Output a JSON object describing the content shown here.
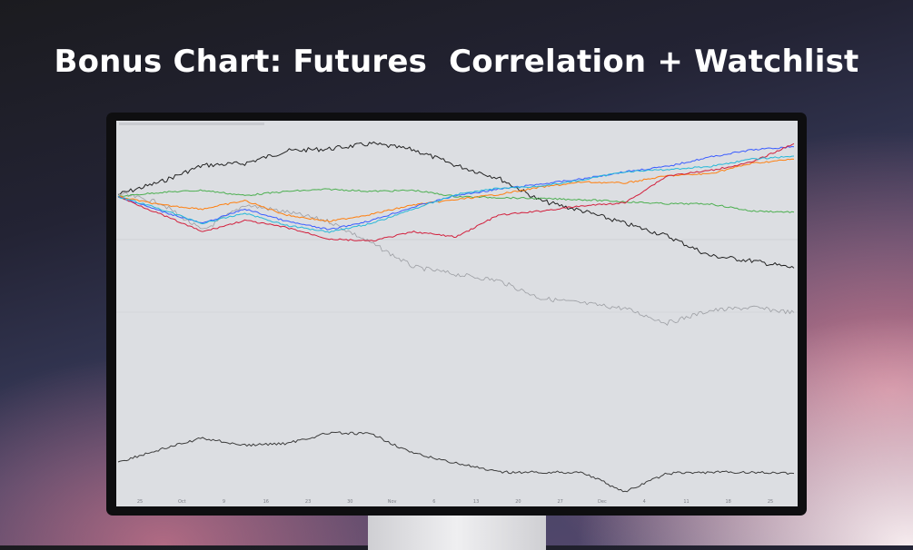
{
  "header": {
    "title": "Bonus Chart: Futures  Correlation + Watchlist"
  },
  "chart_data": {
    "type": "line",
    "title": "",
    "xlabel": "",
    "ylabel": "",
    "x_tick_labels": [
      "25",
      "Oct",
      "9",
      "16",
      "23",
      "30",
      "Nov",
      "6",
      "13",
      "20",
      "27",
      "Dec",
      "4",
      "11",
      "18",
      "25"
    ],
    "grid": false,
    "series": [
      {
        "color": "#222222",
        "values": [
          0.2,
          1.4,
          3.0,
          3.2,
          4.4,
          4.6,
          5.1,
          4.5,
          3.0,
          1.8,
          -0.4,
          -1.4,
          -2.6,
          -3.8,
          -5.7,
          -6.2,
          -6.9
        ]
      },
      {
        "color": "#9c9ea3",
        "values": [
          0.3,
          -0.6,
          -3.3,
          -0.8,
          -1.5,
          -2.4,
          -4.5,
          -6.8,
          -7.5,
          -8.1,
          -9.8,
          -10.3,
          -10.8,
          -12.2,
          -11.0,
          -10.7,
          -11.2
        ]
      },
      {
        "color": "#4caf50",
        "values": [
          0.0,
          0.4,
          0.6,
          0.1,
          0.5,
          0.7,
          0.5,
          0.6,
          0.0,
          -0.1,
          -0.2,
          -0.3,
          -0.5,
          -0.7,
          -0.7,
          -1.4,
          -1.5
        ]
      },
      {
        "color": "#ff7f0e",
        "values": [
          0.0,
          -0.8,
          -1.2,
          -0.4,
          -1.8,
          -2.4,
          -1.7,
          -0.8,
          -0.3,
          0.2,
          0.9,
          1.4,
          1.3,
          2.0,
          2.2,
          3.2,
          3.6
        ]
      },
      {
        "color": "#3a5cff",
        "values": [
          0.0,
          -1.4,
          -2.6,
          -1.2,
          -2.4,
          -3.2,
          -2.3,
          -1.0,
          0.1,
          0.7,
          1.2,
          1.7,
          2.4,
          2.9,
          3.8,
          4.5,
          4.8
        ]
      },
      {
        "color": "#d21f3c",
        "values": [
          0.0,
          -1.7,
          -3.4,
          -2.3,
          -3.0,
          -4.1,
          -4.3,
          -3.4,
          -3.9,
          -1.8,
          -1.4,
          -0.9,
          -0.6,
          2.0,
          2.5,
          3.3,
          5.1
        ]
      },
      {
        "color": "#26b8d8",
        "values": [
          0.0,
          -1.2,
          -2.6,
          -1.6,
          -2.8,
          -3.4,
          -2.6,
          -1.2,
          0.2,
          0.8,
          1.0,
          1.6,
          2.4,
          2.6,
          2.9,
          3.6,
          3.9
        ]
      },
      {
        "color": "#3d3d3d",
        "values": [
          -25.6,
          -24.4,
          -23.3,
          -24.0,
          -23.8,
          -22.8,
          -22.9,
          -24.8,
          -25.7,
          -26.6,
          -26.6,
          -26.6,
          -28.5,
          -26.7,
          -26.6,
          -26.6,
          -26.7
        ]
      }
    ]
  }
}
